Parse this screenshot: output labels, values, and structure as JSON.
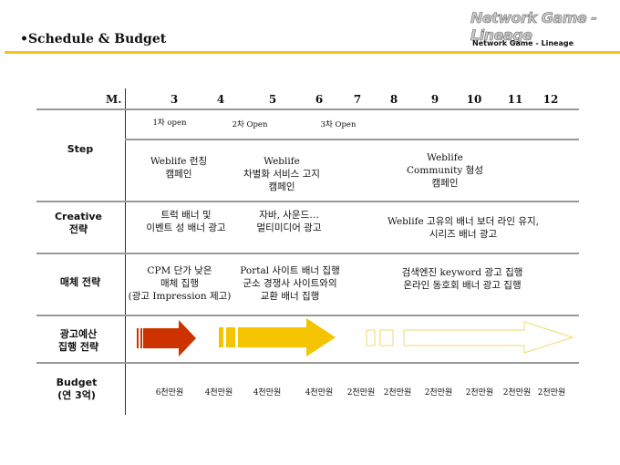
{
  "header": {
    "title": "•Schedule & Budget",
    "logo_text": "Network Game - Lineage",
    "logo_subtext": "Network Game - Lineage",
    "accent_color": "#f5c518"
  },
  "table": {
    "month_label": "M.",
    "months": [
      "3",
      "4",
      "5",
      "6",
      "7",
      "8",
      "9",
      "10",
      "11",
      "12"
    ],
    "rows": {
      "step": "Step",
      "creative": "Creative\n전략",
      "media": "매체 전략",
      "budget_strategy": "광고예산\n집행 전략",
      "budget": "Budget\n(연 3억)"
    },
    "opens": [
      "1차 open",
      "2차 Open",
      "3차 Open"
    ],
    "step_cells": [
      "Weblife 런칭\n캠페인",
      "Weblife\n차별화 서비스 고지\n캠페인",
      "Weblife\nCommunity 형성\n캠페인"
    ],
    "creative_cells": [
      "트럭 배너 및\n이벤트 성 배너 광고",
      "자바, 사운드…\n멀티미디어 광고",
      "Weblife 고유의 배너 보더 라인 유지,\n시리즈 배너 광고"
    ],
    "media_cells": [
      "CPM 단가 낮은\n매체 집행\n(광고 Impression 제고)",
      "Portal 사이트 배너 집행\n군소 경쟁사 사이트와의\n교환 배너 집행",
      "검색엔진 keyword 광고 집행\n온라인 동호회 배너 광고 집행"
    ],
    "budgets": [
      "6천만원",
      "4천만원",
      "4천만원",
      "4천만원",
      "2천만원",
      "2천만원",
      "2천만원",
      "2천만원",
      "2천만원",
      "2천만원"
    ],
    "arrow_colors": {
      "red": "#cc3300",
      "yellow": "#f5c400",
      "outline": "#f3e08a"
    }
  }
}
